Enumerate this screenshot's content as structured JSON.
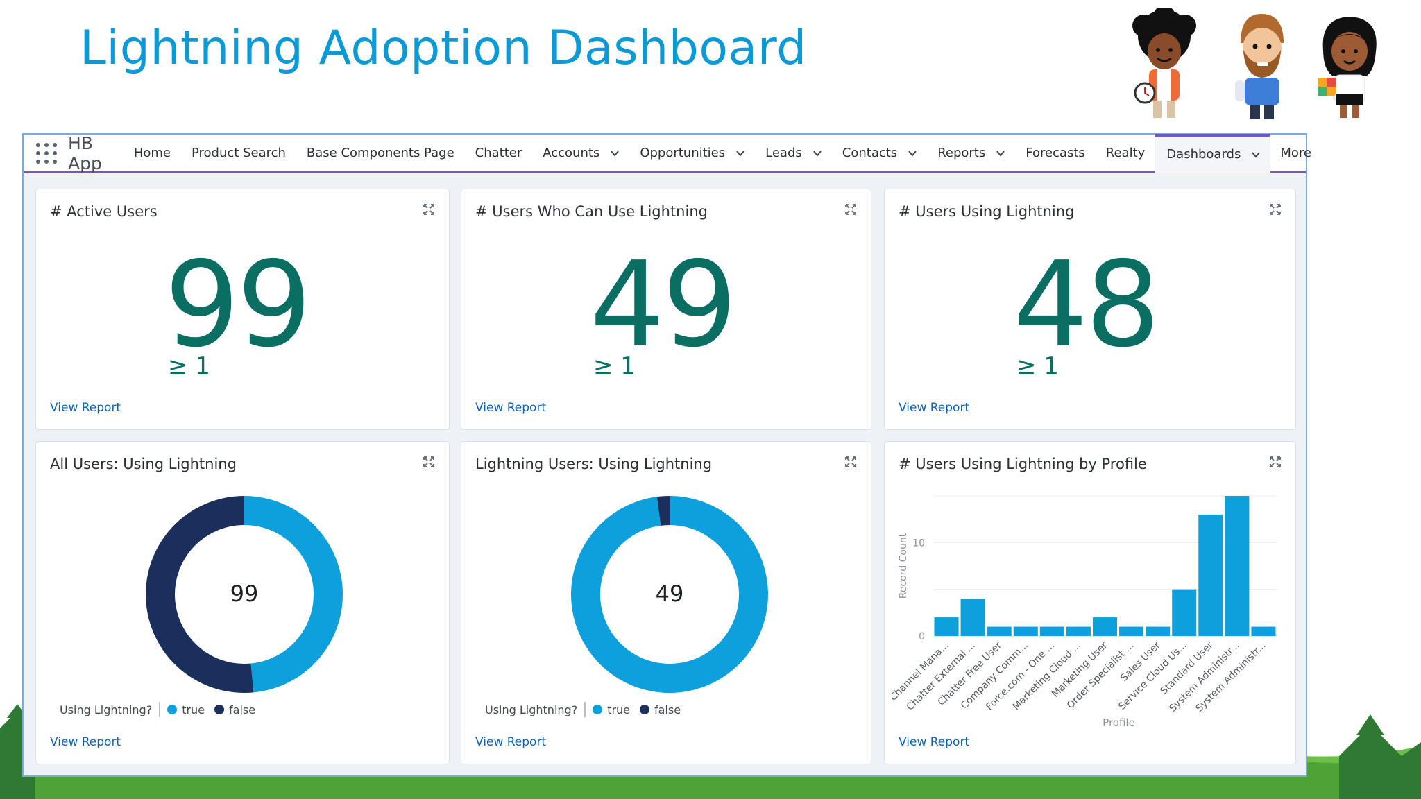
{
  "slide": {
    "title": "Lightning Adoption Dashboard"
  },
  "colors": {
    "title": "#0b9ad6",
    "metric": "#0a6e62",
    "true_series": "#0ea0dc",
    "false_series": "#1a2f5c",
    "nav_accent": "#7a52c7",
    "link": "#0b63b5"
  },
  "navbar": {
    "app_name": "HB App",
    "items": [
      {
        "label": "Home",
        "dropdown": false
      },
      {
        "label": "Product Search",
        "dropdown": false
      },
      {
        "label": "Base Components Page",
        "dropdown": false
      },
      {
        "label": "Chatter",
        "dropdown": false
      },
      {
        "label": "Accounts",
        "dropdown": true
      },
      {
        "label": "Opportunities",
        "dropdown": true
      },
      {
        "label": "Leads",
        "dropdown": true
      },
      {
        "label": "Contacts",
        "dropdown": true
      },
      {
        "label": "Reports",
        "dropdown": true
      },
      {
        "label": "Forecasts",
        "dropdown": false
      },
      {
        "label": "Realty",
        "dropdown": false
      },
      {
        "label": "Dashboards",
        "dropdown": true,
        "active": true
      },
      {
        "label": "More",
        "dropdown": false
      }
    ]
  },
  "cards": {
    "active_users": {
      "title": "# Active Users",
      "value": "99",
      "threshold": "≥ 1",
      "link": "View Report"
    },
    "can_use": {
      "title": "# Users Who Can Use Lightning",
      "value": "49",
      "threshold": "≥ 1",
      "link": "View Report"
    },
    "using": {
      "title": "# Users Using Lightning",
      "value": "48",
      "threshold": "≥ 1",
      "link": "View Report"
    },
    "all_users_donut": {
      "title": "All Users: Using Lightning",
      "center": "99",
      "legend_title": "Using Lightning?",
      "legend": [
        "true",
        "false"
      ],
      "link": "View Report"
    },
    "lightning_users_donut": {
      "title": "Lightning Users: Using Lightning",
      "center": "49",
      "legend_title": "Using Lightning?",
      "legend": [
        "true",
        "false"
      ],
      "link": "View Report"
    },
    "by_profile": {
      "title": "# Users Using Lightning by Profile",
      "link": "View Report"
    }
  },
  "chart_data": [
    {
      "type": "pie",
      "title": "All Users: Using Lightning",
      "donut": true,
      "total": 99,
      "slices": [
        {
          "label": "true",
          "value": 48
        },
        {
          "label": "false",
          "value": 51
        }
      ]
    },
    {
      "type": "pie",
      "title": "Lightning Users: Using Lightning",
      "donut": true,
      "total": 49,
      "slices": [
        {
          "label": "true",
          "value": 48
        },
        {
          "label": "false",
          "value": 1
        }
      ]
    },
    {
      "type": "bar",
      "title": "# Users Using Lightning by Profile",
      "xlabel": "Profile",
      "ylabel": "Record Count",
      "ylim": [
        0,
        15
      ],
      "yticks": [
        0,
        10
      ],
      "grid": true,
      "categories": [
        "Channel Mana...",
        "Chatter External ...",
        "Chatter Free User",
        "Company Comm...",
        "Force.com - One ...",
        "Marketing Cloud ...",
        "Marketing User",
        "Order Specialist ...",
        "Sales User",
        "Service Cloud Us...",
        "Standard User",
        "System Administr...",
        "System Administr..."
      ],
      "values": [
        2,
        4,
        1,
        1,
        1,
        1,
        2,
        1,
        1,
        5,
        13,
        15,
        1
      ]
    }
  ]
}
